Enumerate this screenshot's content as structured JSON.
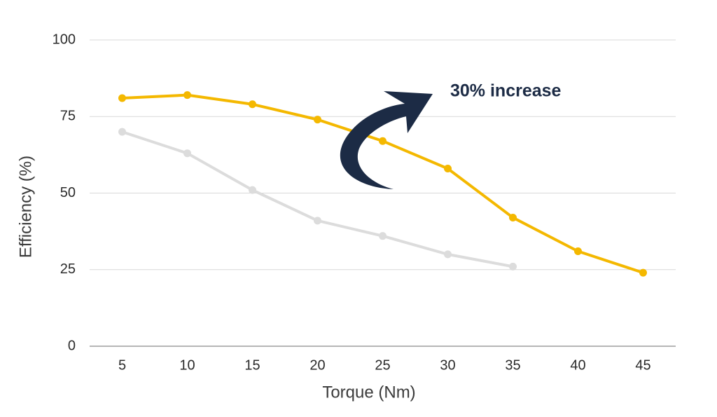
{
  "chart_data": {
    "type": "line",
    "categories": [
      5,
      10,
      15,
      20,
      25,
      30,
      35,
      40,
      45
    ],
    "series": [
      {
        "color": "#f4b800",
        "values": [
          81,
          82,
          79,
          74,
          67,
          58,
          42,
          31,
          24
        ]
      },
      {
        "color": "#dcdcdc",
        "values": [
          70,
          63,
          51,
          41,
          36,
          30,
          26,
          null,
          null
        ]
      }
    ],
    "ylim": [
      0,
      100
    ],
    "yticks": [
      0,
      25,
      50,
      75,
      100
    ],
    "grid": true,
    "xlabel": "Torque (Nm)",
    "ylabel": "Efficiency (%)",
    "annotation": "30% increase"
  }
}
